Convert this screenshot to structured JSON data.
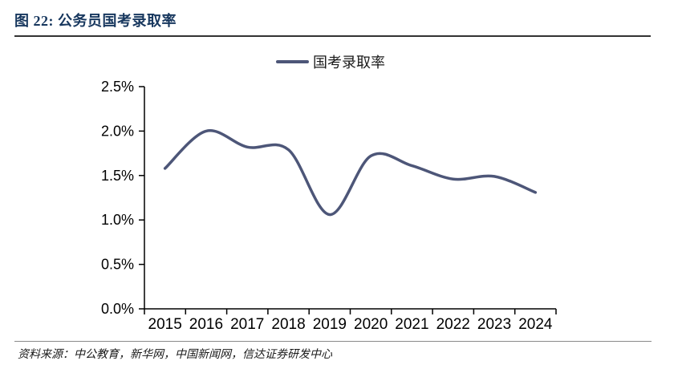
{
  "header": {
    "title": "图 22: 公务员国考录取率"
  },
  "footer": {
    "source": "资料来源：中公教育，新华网，中国新闻网，信达证券研发中心"
  },
  "colors": {
    "title": "#17375e",
    "line": "#4d5678",
    "axis": "#000000",
    "tick_label": "#000000",
    "top_rule": "#333333",
    "bottom_rule": "#8a8a8a"
  },
  "chart_data": {
    "type": "line",
    "title": "",
    "legend": "国考录取率",
    "legend_position": "top-center",
    "categories": [
      "2015",
      "2016",
      "2017",
      "2018",
      "2019",
      "2020",
      "2021",
      "2022",
      "2023",
      "2024"
    ],
    "series": [
      {
        "name": "国考录取率",
        "values": [
          1.58,
          2.0,
          1.82,
          1.79,
          1.06,
          1.72,
          1.61,
          1.46,
          1.49,
          1.31
        ]
      }
    ],
    "unit": "%",
    "ylim": [
      0.0,
      2.5
    ],
    "yticks": [
      "0.0%",
      "0.5%",
      "1.0%",
      "1.5%",
      "2.0%",
      "2.5%"
    ],
    "grid": false,
    "smooth": true
  }
}
